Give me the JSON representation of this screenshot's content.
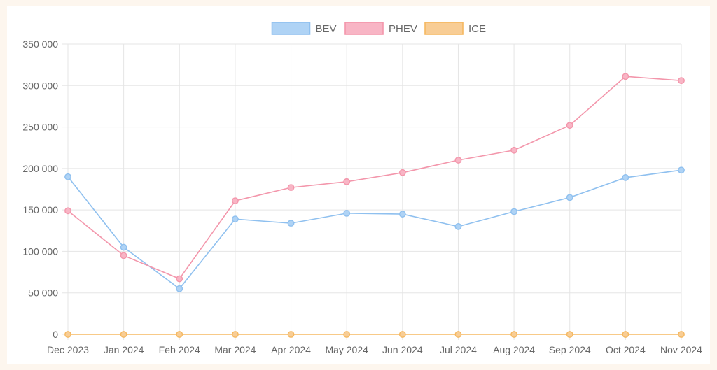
{
  "chart_data": {
    "type": "line",
    "title": "",
    "xlabel": "",
    "ylabel": "",
    "ylim": [
      0,
      350000
    ],
    "grid": true,
    "legend_position": "top-center",
    "y_ticks": [
      {
        "value": 0,
        "label": "0"
      },
      {
        "value": 50000,
        "label": "50 000"
      },
      {
        "value": 100000,
        "label": "100 000"
      },
      {
        "value": 150000,
        "label": "150 000"
      },
      {
        "value": 200000,
        "label": "200 000"
      },
      {
        "value": 250000,
        "label": "250 000"
      },
      {
        "value": 300000,
        "label": "300 000"
      },
      {
        "value": 350000,
        "label": "350 000"
      }
    ],
    "categories": [
      "Dec 2023",
      "Jan 2024",
      "Feb 2024",
      "Mar 2024",
      "Apr 2024",
      "May 2024",
      "Jun 2024",
      "Jul 2024",
      "Aug 2024",
      "Sep 2024",
      "Oct 2024",
      "Nov 2024"
    ],
    "series": [
      {
        "name": "BEV",
        "key": "bev",
        "color": "#8fc0ef",
        "fill": "#afd3f5",
        "values": [
          190000,
          105000,
          55000,
          139000,
          134000,
          146000,
          145000,
          130000,
          148000,
          165000,
          189000,
          198000
        ]
      },
      {
        "name": "PHEV",
        "key": "phev",
        "color": "#f396ab",
        "fill": "#f8b5c5",
        "values": [
          149000,
          95000,
          67000,
          161000,
          177000,
          184000,
          195000,
          210000,
          222000,
          252000,
          311000,
          306000
        ]
      },
      {
        "name": "ICE",
        "key": "ice",
        "color": "#f5b860",
        "fill": "#f8cd95",
        "values": [
          0,
          0,
          0,
          0,
          0,
          0,
          0,
          0,
          0,
          0,
          0,
          0
        ]
      }
    ]
  }
}
